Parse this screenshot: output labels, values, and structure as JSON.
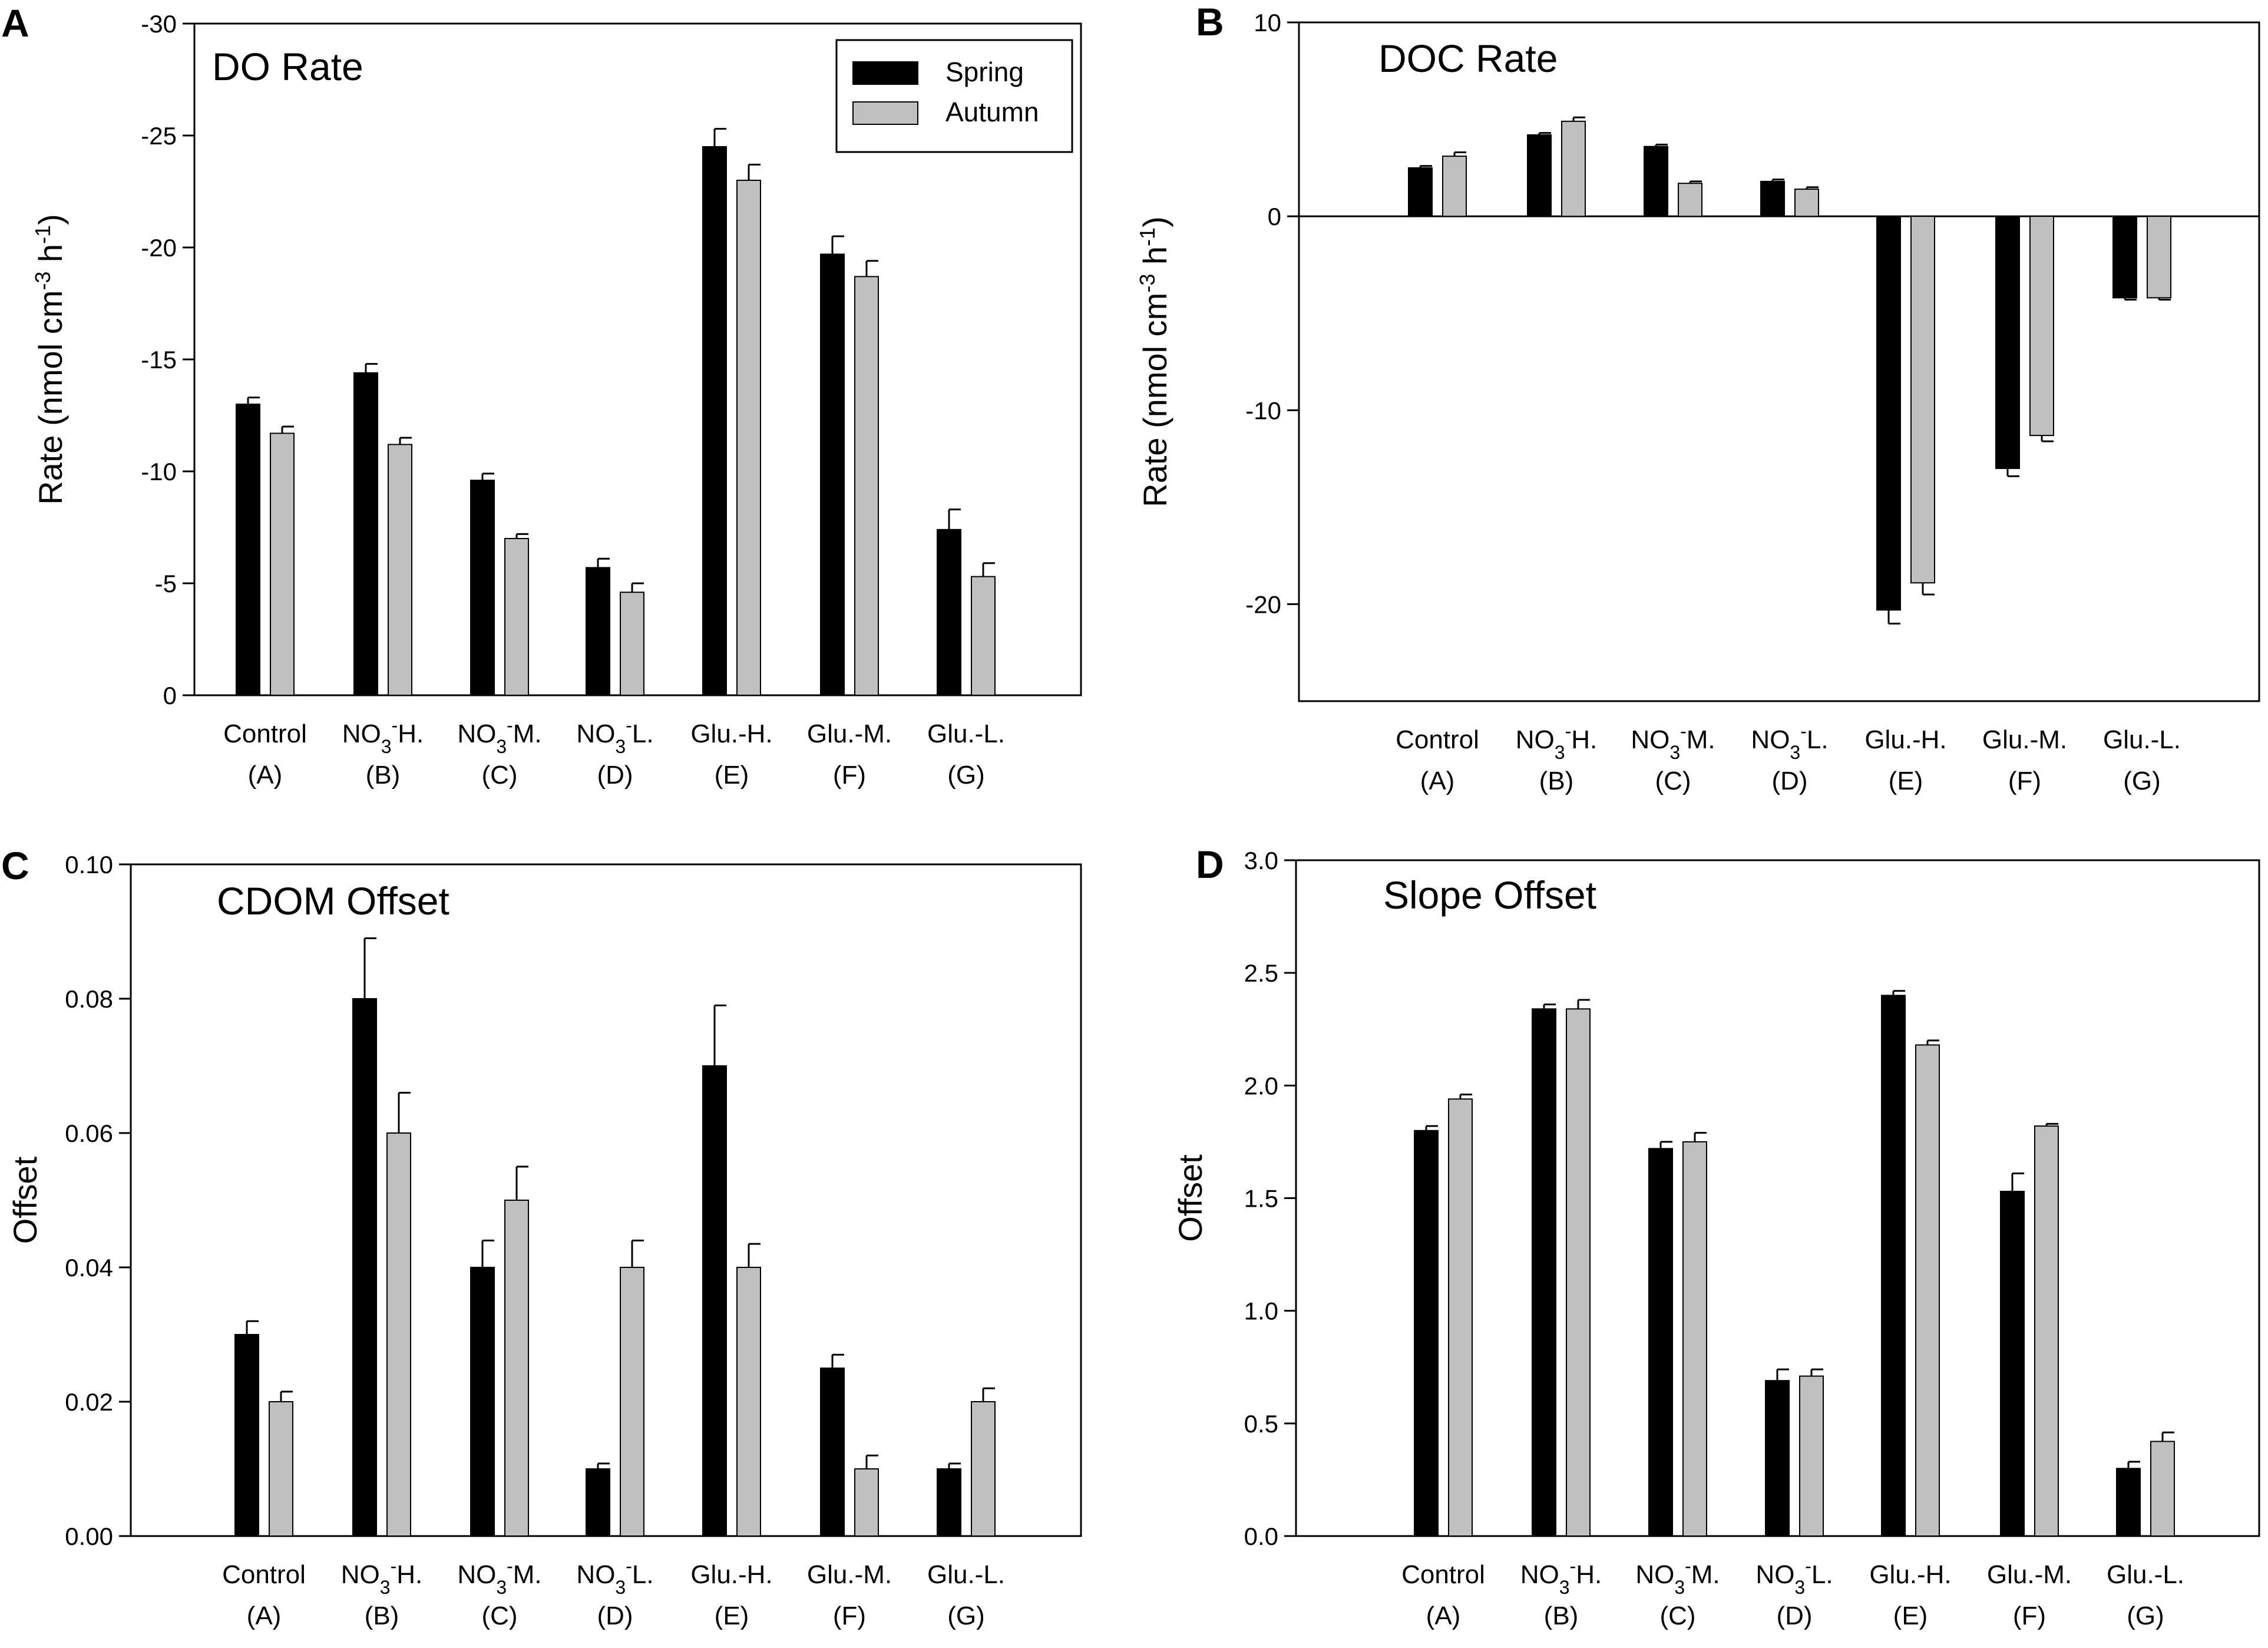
{
  "categories": [
    {
      "main": "Control",
      "sub": "(A)"
    },
    {
      "main": "NO3-H.",
      "sub": "(B)"
    },
    {
      "main": "NO3-M.",
      "sub": "(C)"
    },
    {
      "main": "NO3-L.",
      "sub": "(D)"
    },
    {
      "main": "Glu.-H.",
      "sub": "(E)"
    },
    {
      "main": "Glu.-M.",
      "sub": "(F)"
    },
    {
      "main": "Glu.-L.",
      "sub": "(G)"
    }
  ],
  "legend": [
    {
      "name": "Spring",
      "color": "#000000"
    },
    {
      "name": "Autumn",
      "color": "#c0c0c0"
    }
  ],
  "chart_data": [
    {
      "panel": "A",
      "type": "bar",
      "title": "DO Rate",
      "ylabel": "Rate (nmol cm-3 h-1)",
      "ylim": [
        0,
        -30
      ],
      "yticks": [
        0,
        -5,
        -10,
        -15,
        -20,
        -25,
        -30
      ],
      "ytick_labels": [
        "0",
        "-5",
        "-10",
        "-15",
        "-20",
        "-25",
        "-30"
      ],
      "series": [
        {
          "name": "Spring",
          "values": [
            -13.0,
            -14.4,
            -9.6,
            -5.7,
            -24.5,
            -19.7,
            -7.4
          ],
          "errors": [
            0.3,
            0.4,
            0.3,
            0.4,
            0.8,
            0.8,
            0.9
          ]
        },
        {
          "name": "Autumn",
          "values": [
            -11.7,
            -11.2,
            -7.0,
            -4.6,
            -23.0,
            -18.7,
            -5.3
          ],
          "errors": [
            0.3,
            0.3,
            0.2,
            0.4,
            0.7,
            0.7,
            0.6
          ]
        }
      ]
    },
    {
      "panel": "B",
      "type": "bar",
      "title": "DOC Rate",
      "ylabel": "Rate (nmol cm-3 h-1)",
      "ylim": [
        -25,
        10
      ],
      "yticks": [
        -20,
        -10,
        0,
        10
      ],
      "ytick_labels": [
        "-20",
        "-10",
        "0",
        "10"
      ],
      "series": [
        {
          "name": "Spring",
          "values": [
            2.5,
            4.2,
            3.6,
            1.8,
            -20.3,
            -13.0,
            -4.2
          ],
          "errors": [
            0.1,
            0.1,
            0.1,
            0.1,
            0.7,
            0.4,
            0.1
          ]
        },
        {
          "name": "Autumn",
          "values": [
            3.1,
            4.9,
            1.7,
            1.4,
            -18.9,
            -11.3,
            -4.2
          ],
          "errors": [
            0.2,
            0.2,
            0.1,
            0.1,
            0.6,
            0.3,
            0.1
          ]
        }
      ]
    },
    {
      "panel": "C",
      "type": "bar",
      "title": "CDOM Offset",
      "ylabel": "Offset",
      "ylim": [
        0,
        0.1
      ],
      "yticks": [
        0,
        0.02,
        0.04,
        0.06,
        0.08,
        0.1
      ],
      "ytick_labels": [
        "0.00",
        "0.02",
        "0.04",
        "0.06",
        "0.08",
        "0.10"
      ],
      "series": [
        {
          "name": "Spring",
          "values": [
            0.03,
            0.08,
            0.04,
            0.01,
            0.07,
            0.025,
            0.01
          ],
          "errors": [
            0.002,
            0.009,
            0.004,
            0.0008,
            0.009,
            0.002,
            0.0008
          ]
        },
        {
          "name": "Autumn",
          "values": [
            0.02,
            0.06,
            0.05,
            0.04,
            0.04,
            0.01,
            0.02
          ],
          "errors": [
            0.0015,
            0.006,
            0.005,
            0.004,
            0.0035,
            0.002,
            0.002
          ]
        }
      ]
    },
    {
      "panel": "D",
      "type": "bar",
      "title": "Slope Offset",
      "ylabel": "Offset",
      "ylim": [
        0,
        3
      ],
      "yticks": [
        0,
        0.5,
        1,
        1.5,
        2,
        2.5,
        3
      ],
      "ytick_labels": [
        "0.0",
        "0.5",
        "1.0",
        "1.5",
        "2.0",
        "2.5",
        "3.0"
      ],
      "series": [
        {
          "name": "Spring",
          "values": [
            1.8,
            2.34,
            1.72,
            0.69,
            2.4,
            1.53,
            0.3
          ],
          "errors": [
            0.02,
            0.02,
            0.03,
            0.05,
            0.02,
            0.08,
            0.03
          ]
        },
        {
          "name": "Autumn",
          "values": [
            1.94,
            2.34,
            1.75,
            0.71,
            2.18,
            1.82,
            0.42
          ],
          "errors": [
            0.02,
            0.04,
            0.04,
            0.03,
            0.02,
            0.01,
            0.04
          ]
        }
      ]
    }
  ]
}
